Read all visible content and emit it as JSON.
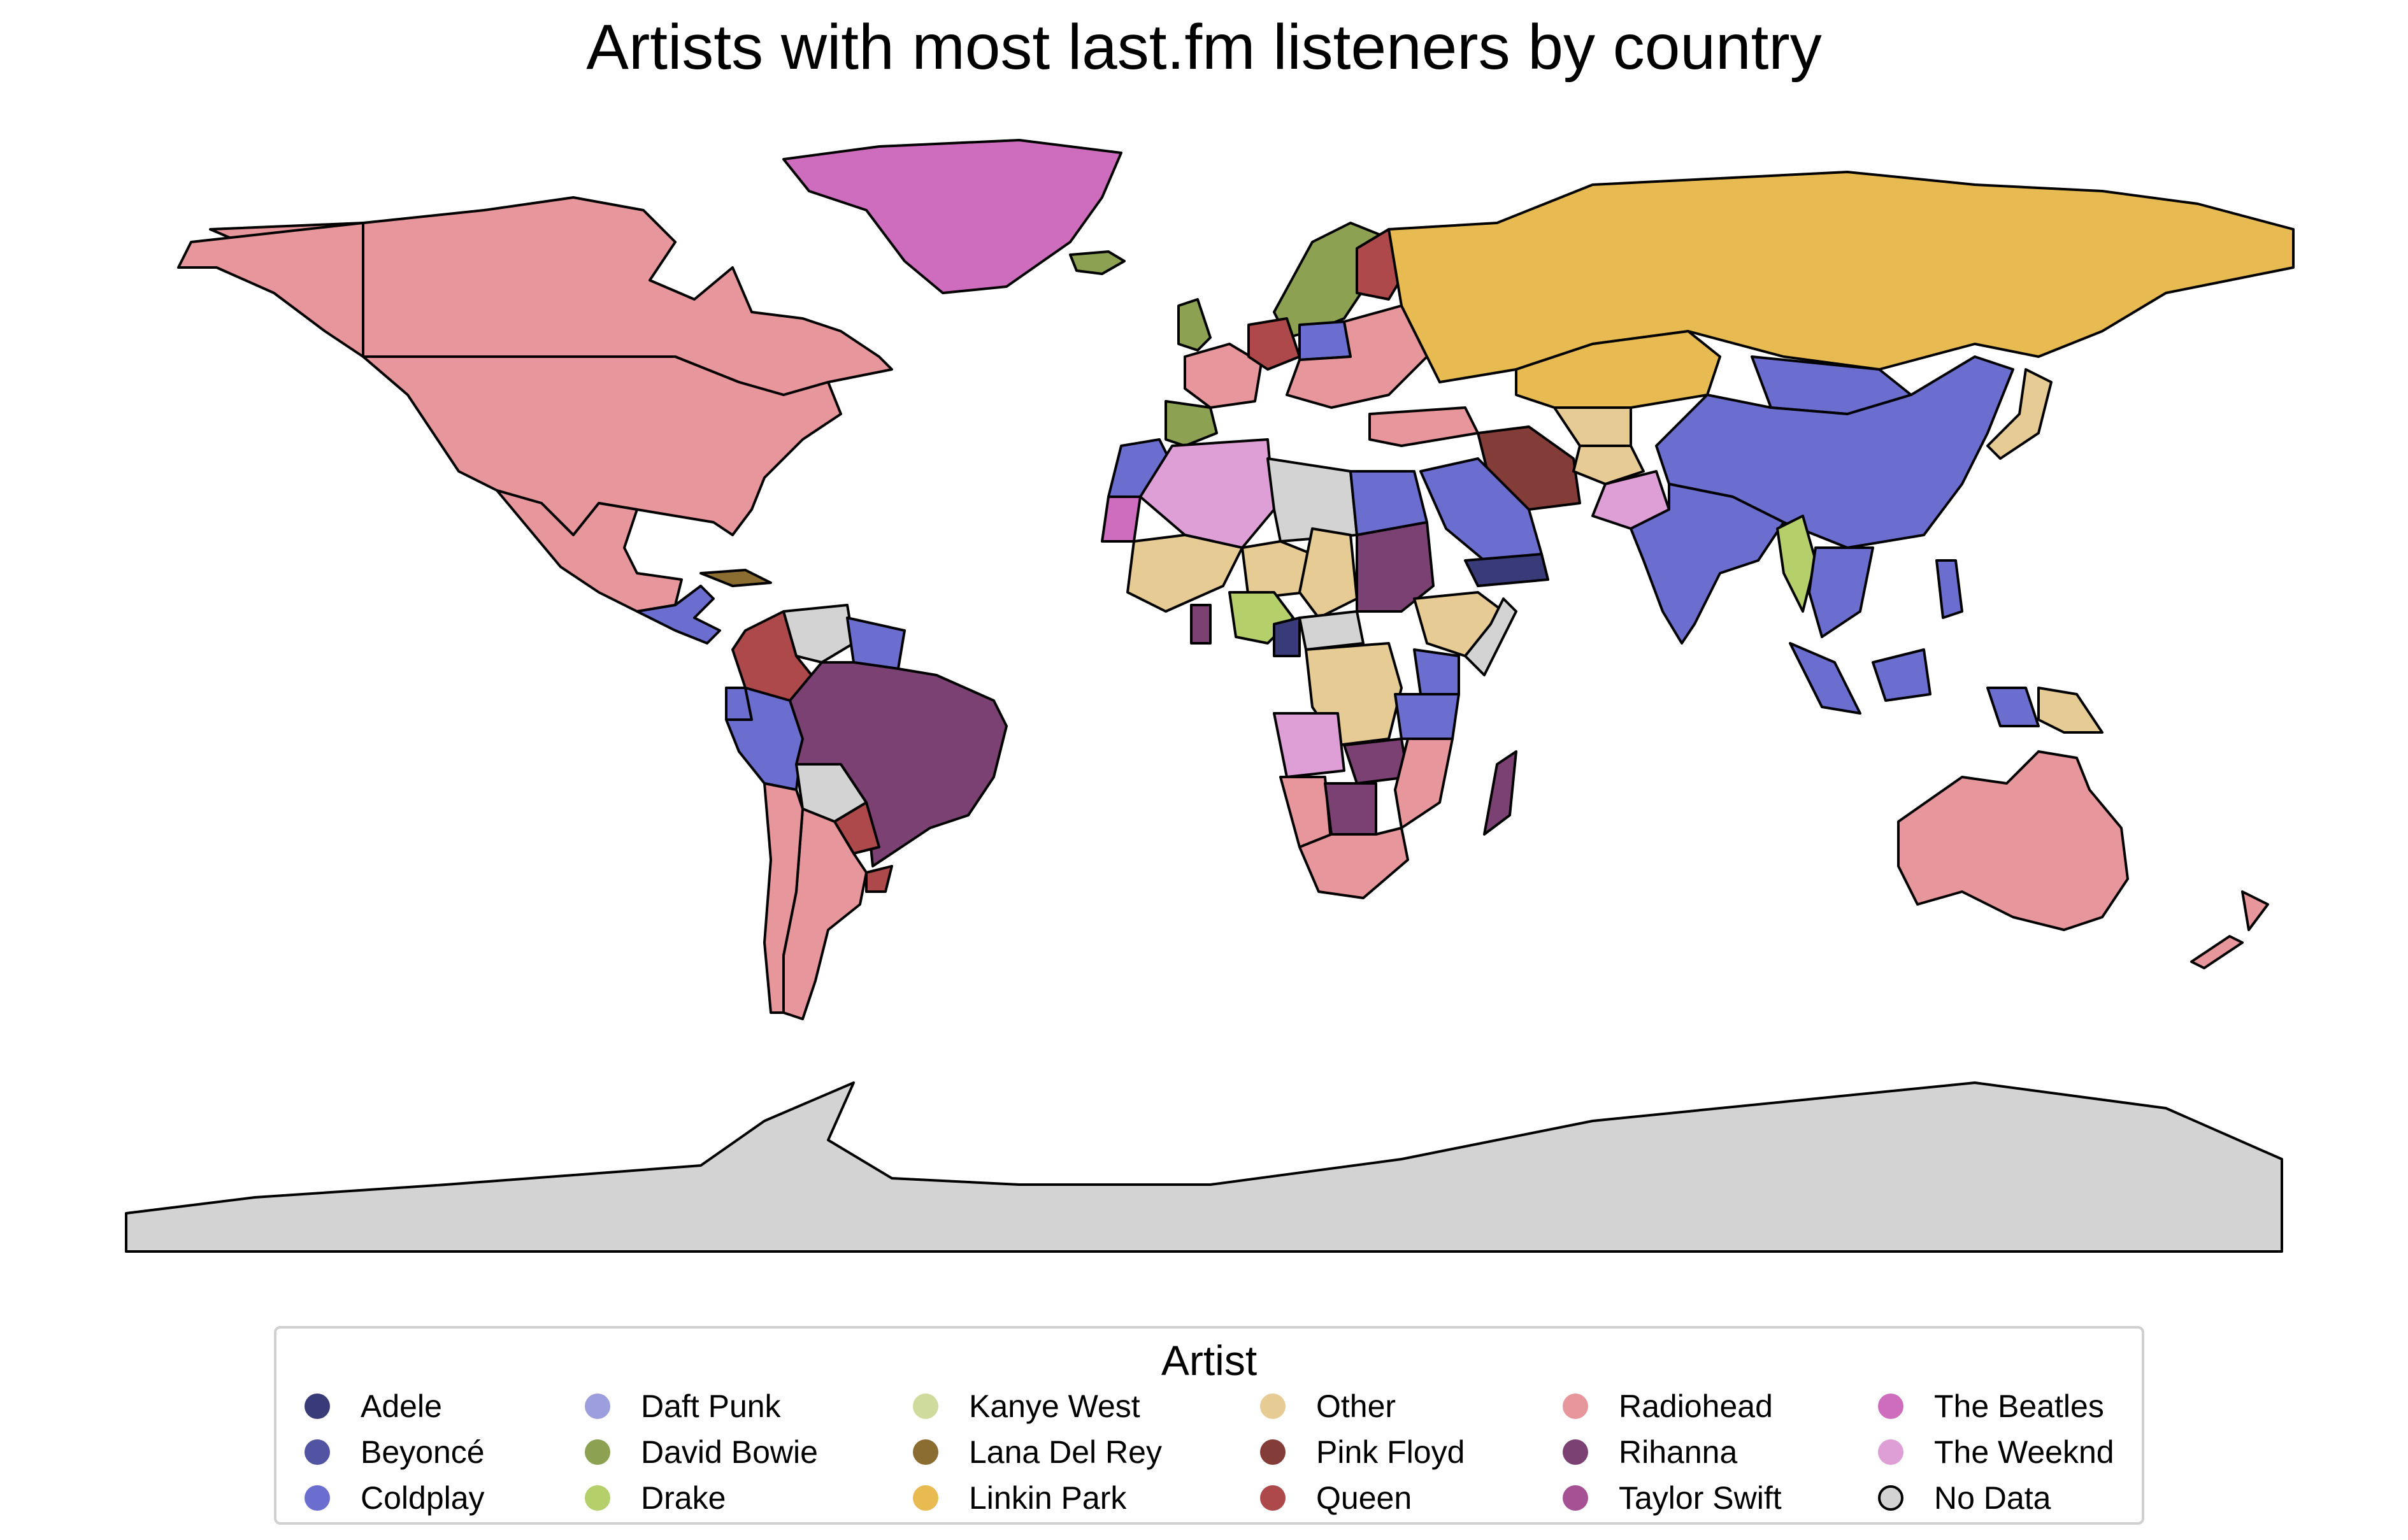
{
  "title": "Artists with most last.fm listeners by country",
  "legend": {
    "title": "Artist",
    "items": [
      {
        "label": "Adele",
        "color": "#393b79"
      },
      {
        "label": "Beyoncé",
        "color": "#5254a3"
      },
      {
        "label": "Coldplay",
        "color": "#6b6ecf"
      },
      {
        "label": "Daft Punk",
        "color": "#9c9ede"
      },
      {
        "label": "David Bowie",
        "color": "#8ca252"
      },
      {
        "label": "Drake",
        "color": "#b5cf6b"
      },
      {
        "label": "Kanye West",
        "color": "#cedb9c"
      },
      {
        "label": "Lana Del Rey",
        "color": "#8c6d31"
      },
      {
        "label": "Linkin Park",
        "color": "#e7ba52"
      },
      {
        "label": "Other",
        "color": "#e7cb94"
      },
      {
        "label": "Pink Floyd",
        "color": "#843c39"
      },
      {
        "label": "Queen",
        "color": "#ad494a"
      },
      {
        "label": "Radiohead",
        "color": "#e7969c"
      },
      {
        "label": "Rihanna",
        "color": "#7b4173"
      },
      {
        "label": "Taylor Swift",
        "color": "#a55194"
      },
      {
        "label": "The Beatles",
        "color": "#ce6dbd"
      },
      {
        "label": "The Weeknd",
        "color": "#de9ed6"
      },
      {
        "label": "No Data",
        "color": "#d3d3d3"
      }
    ]
  },
  "regions": [
    {
      "name": "Canada",
      "artist": "Radiohead"
    },
    {
      "name": "United States",
      "artist": "Radiohead"
    },
    {
      "name": "Alaska",
      "artist": "Radiohead"
    },
    {
      "name": "Mexico",
      "artist": "Radiohead"
    },
    {
      "name": "Greenland",
      "artist": "The Beatles"
    },
    {
      "name": "Iceland",
      "artist": "David Bowie"
    },
    {
      "name": "Cuba",
      "artist": "Lana Del Rey"
    },
    {
      "name": "Central America",
      "artist": "Coldplay"
    },
    {
      "name": "Colombia",
      "artist": "Queen"
    },
    {
      "name": "Venezuela",
      "artist": "No Data"
    },
    {
      "name": "Guianas",
      "artist": "Coldplay"
    },
    {
      "name": "Ecuador",
      "artist": "Coldplay"
    },
    {
      "name": "Peru",
      "artist": "Coldplay"
    },
    {
      "name": "Bolivia",
      "artist": "No Data"
    },
    {
      "name": "Brazil",
      "artist": "Rihanna"
    },
    {
      "name": "Paraguay",
      "artist": "Queen"
    },
    {
      "name": "Uruguay",
      "artist": "Queen"
    },
    {
      "name": "Argentina",
      "artist": "Radiohead"
    },
    {
      "name": "Chile",
      "artist": "Radiohead"
    },
    {
      "name": "Russia",
      "artist": "Linkin Park"
    },
    {
      "name": "Kazakhstan",
      "artist": "Linkin Park"
    },
    {
      "name": "Mongolia",
      "artist": "Coldplay"
    },
    {
      "name": "China",
      "artist": "Coldplay"
    },
    {
      "name": "India",
      "artist": "Coldplay"
    },
    {
      "name": "Iran",
      "artist": "Pink Floyd"
    },
    {
      "name": "Saudi Arabia",
      "artist": "Coldplay"
    },
    {
      "name": "Yemen",
      "artist": "Adele"
    },
    {
      "name": "Pakistan",
      "artist": "The Weeknd"
    },
    {
      "name": "Afghanistan",
      "artist": "Other"
    },
    {
      "name": "Central Asia",
      "artist": "Other"
    },
    {
      "name": "Turkey",
      "artist": "Radiohead"
    },
    {
      "name": "Myanmar",
      "artist": "Drake"
    },
    {
      "name": "Indochina",
      "artist": "Coldplay"
    },
    {
      "name": "Japan",
      "artist": "Other"
    },
    {
      "name": "Philippines",
      "artist": "Coldplay"
    },
    {
      "name": "Indonesia",
      "artist": "Coldplay"
    },
    {
      "name": "Papua New Guinea",
      "artist": "Other"
    },
    {
      "name": "Australia",
      "artist": "Radiohead"
    },
    {
      "name": "New Zealand",
      "artist": "Radiohead"
    },
    {
      "name": "Scandinavia",
      "artist": "David Bowie"
    },
    {
      "name": "Finland",
      "artist": "Queen"
    },
    {
      "name": "United Kingdom",
      "artist": "David Bowie"
    },
    {
      "name": "France",
      "artist": "Radiohead"
    },
    {
      "name": "Spain",
      "artist": "David Bowie"
    },
    {
      "name": "Germany",
      "artist": "Queen"
    },
    {
      "name": "Poland",
      "artist": "Coldplay"
    },
    {
      "name": "Eastern Europe",
      "artist": "Radiohead"
    },
    {
      "name": "Morocco",
      "artist": "Coldplay"
    },
    {
      "name": "Algeria",
      "artist": "The Weeknd"
    },
    {
      "name": "Libya",
      "artist": "No Data"
    },
    {
      "name": "Egypt",
      "artist": "Coldplay"
    },
    {
      "name": "Western Sahara",
      "artist": "The Beatles"
    },
    {
      "name": "Mali",
      "artist": "Other"
    },
    {
      "name": "Niger",
      "artist": "Other"
    },
    {
      "name": "Chad",
      "artist": "Other"
    },
    {
      "name": "Sudan",
      "artist": "Rihanna"
    },
    {
      "name": "Ethiopia",
      "artist": "Other"
    },
    {
      "name": "Somalia",
      "artist": "No Data"
    },
    {
      "name": "Nigeria",
      "artist": "Drake"
    },
    {
      "name": "Ghana",
      "artist": "Rihanna"
    },
    {
      "name": "Cameroon",
      "artist": "Adele"
    },
    {
      "name": "Central African Rep.",
      "artist": "No Data"
    },
    {
      "name": "DR Congo",
      "artist": "Other"
    },
    {
      "name": "Kenya",
      "artist": "Coldplay"
    },
    {
      "name": "Tanzania",
      "artist": "Coldplay"
    },
    {
      "name": "Angola",
      "artist": "The Weeknd"
    },
    {
      "name": "Zambia",
      "artist": "Rihanna"
    },
    {
      "name": "Mozambique",
      "artist": "Radiohead"
    },
    {
      "name": "Namibia",
      "artist": "Radiohead"
    },
    {
      "name": "Botswana",
      "artist": "Rihanna"
    },
    {
      "name": "South Africa",
      "artist": "Radiohead"
    },
    {
      "name": "Madagascar",
      "artist": "Rihanna"
    },
    {
      "name": "Antarctica",
      "artist": "No Data"
    }
  ]
}
